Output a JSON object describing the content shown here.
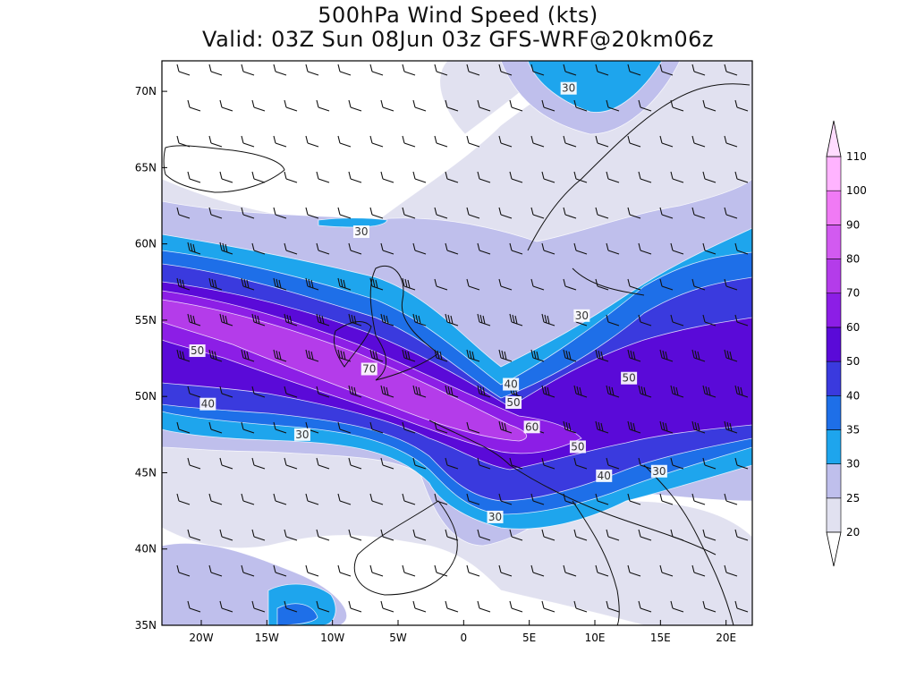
{
  "title": {
    "line1": "500hPa Wind Speed (kts)",
    "line2": "Valid: 03Z Sun 08Jun 03z GFS-WRF@20km06z"
  },
  "map": {
    "lon_range": [
      -23,
      22
    ],
    "lat_range": [
      35,
      72
    ],
    "x_ticks": [
      {
        "lon": -20,
        "label": "20W"
      },
      {
        "lon": -15,
        "label": "15W"
      },
      {
        "lon": -10,
        "label": "10W"
      },
      {
        "lon": -5,
        "label": "5W"
      },
      {
        "lon": 0,
        "label": "0"
      },
      {
        "lon": 5,
        "label": "5E"
      },
      {
        "lon": 10,
        "label": "10E"
      },
      {
        "lon": 15,
        "label": "15E"
      },
      {
        "lon": 20,
        "label": "20E"
      }
    ],
    "y_ticks": [
      {
        "lat": 70,
        "label": "70N"
      },
      {
        "lat": 65,
        "label": "65N"
      },
      {
        "lat": 60,
        "label": "60N"
      },
      {
        "lat": 55,
        "label": "55N"
      },
      {
        "lat": 50,
        "label": "50N"
      },
      {
        "lat": 45,
        "label": "45N"
      },
      {
        "lat": 40,
        "label": "40N"
      },
      {
        "lat": 35,
        "label": "35N"
      }
    ],
    "contour_labels": [
      {
        "text": "30",
        "lon": 8,
        "lat": 70.2
      },
      {
        "text": "30",
        "lon": -7.8,
        "lat": 60.8
      },
      {
        "text": "30",
        "lon": 9,
        "lat": 55.3
      },
      {
        "text": "50",
        "lon": -20.3,
        "lat": 53
      },
      {
        "text": "70",
        "lon": -7.2,
        "lat": 51.8
      },
      {
        "text": "40",
        "lon": 3.6,
        "lat": 50.8
      },
      {
        "text": "50",
        "lon": 12.6,
        "lat": 51.2
      },
      {
        "text": "50",
        "lon": 3.8,
        "lat": 49.6
      },
      {
        "text": "40",
        "lon": -19.5,
        "lat": 49.5
      },
      {
        "text": "60",
        "lon": 5.2,
        "lat": 48
      },
      {
        "text": "30",
        "lon": -12.3,
        "lat": 47.5
      },
      {
        "text": "50",
        "lon": 8.7,
        "lat": 46.7
      },
      {
        "text": "30",
        "lon": 14.9,
        "lat": 45.1
      },
      {
        "text": "40",
        "lon": 10.7,
        "lat": 44.8
      },
      {
        "text": "30",
        "lon": 2.4,
        "lat": 42.1
      }
    ]
  },
  "colorbar": {
    "levels": [
      "20",
      "25",
      "30",
      "35",
      "40",
      "50",
      "60",
      "70",
      "80",
      "90",
      "100",
      "110"
    ],
    "colors": [
      "#e1e1f0",
      "#bfbfec",
      "#1ea5ed",
      "#1e6fe8",
      "#3a3ade",
      "#5a0ad8",
      "#8c1ee6",
      "#b43cea",
      "#d25af0",
      "#f07af5",
      "#ffb4ff",
      "#ffdcff"
    ]
  }
}
